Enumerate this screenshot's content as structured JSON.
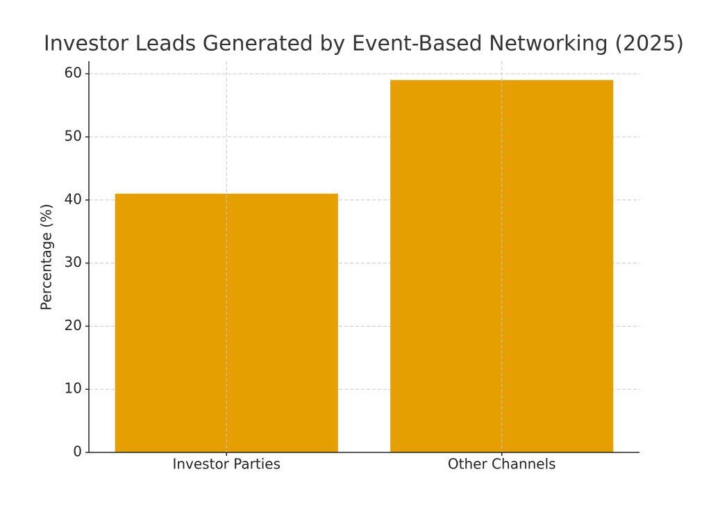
{
  "chart_data": {
    "type": "bar",
    "title": "Investor Leads Generated by Event-Based Networking (2025)",
    "ylabel": "Percentage (%)",
    "categories": [
      "Investor Parties",
      "Other Channels"
    ],
    "values": [
      41,
      59
    ],
    "color": "#e69f00",
    "ylim": [
      0,
      62
    ],
    "yticks": [
      0,
      10,
      20,
      30,
      40,
      50,
      60
    ],
    "grid": true
  }
}
